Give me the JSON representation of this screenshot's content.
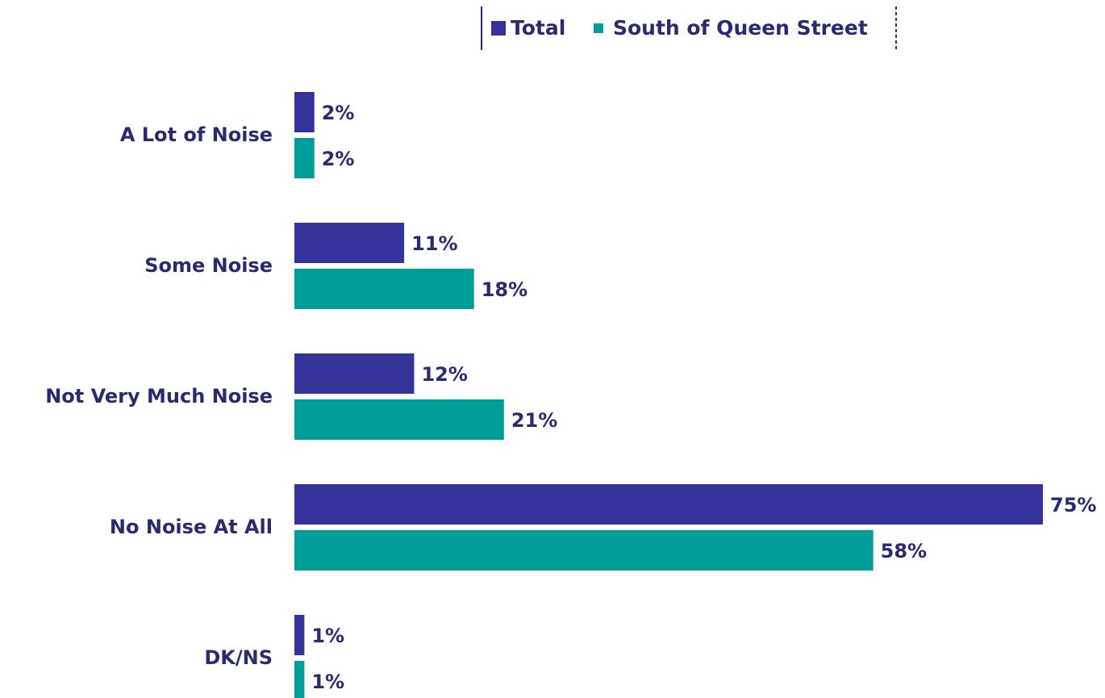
{
  "chart_data": {
    "type": "bar",
    "orientation": "horizontal",
    "categories": [
      "A Lot of Noise",
      "Some Noise",
      "Not Very Much Noise",
      "No Noise At All",
      "DK/NS"
    ],
    "series": [
      {
        "name": "Total",
        "color": "#333399",
        "values": [
          2,
          11,
          12,
          75,
          1
        ],
        "value_labels": [
          "2%",
          "11%",
          "12%",
          "75%",
          "1%"
        ]
      },
      {
        "name": "South of Queen Street",
        "color": "#009e99",
        "values": [
          2,
          18,
          21,
          58,
          1
        ],
        "value_labels": [
          "2%",
          "18%",
          "21%",
          "58%",
          "1%"
        ]
      }
    ],
    "legend": "top"
  }
}
